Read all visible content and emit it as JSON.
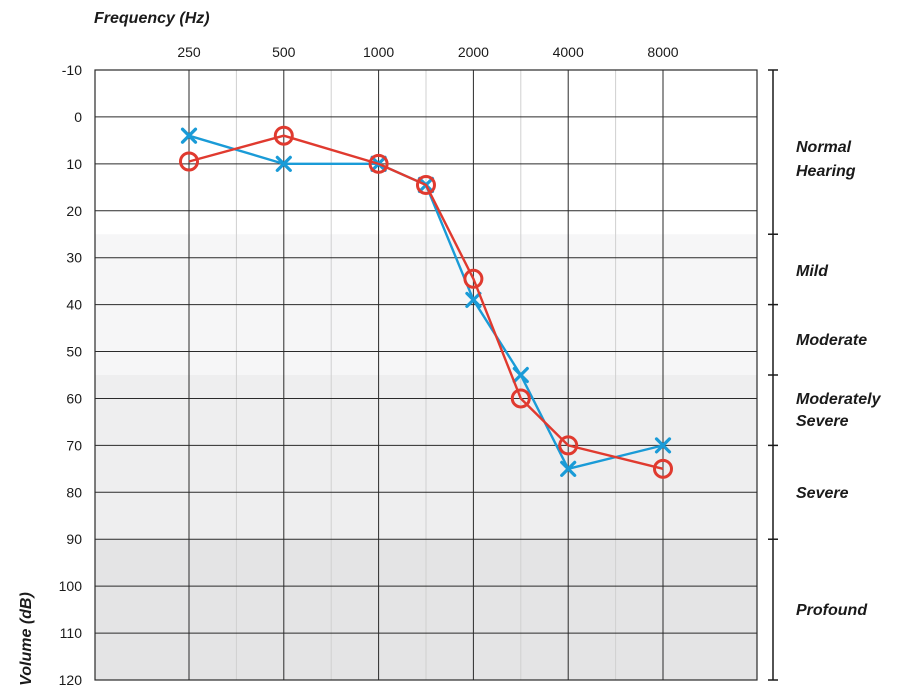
{
  "chart_data": {
    "type": "line",
    "xlabel": "Frequency (Hz)",
    "ylabel": "Volume (dB)",
    "x_ticks": [
      "250",
      "500",
      "1000",
      "2000",
      "4000",
      "8000"
    ],
    "y_ticks": [
      -10,
      0,
      10,
      20,
      30,
      40,
      50,
      60,
      70,
      80,
      90,
      100,
      110,
      120
    ],
    "y_tick_labels": [
      "-10",
      "0",
      "10",
      "20",
      "30",
      "40",
      "50",
      "60",
      "70",
      "80",
      "90",
      "100",
      "110",
      "120"
    ],
    "ylim": [
      -10,
      120
    ],
    "y_inverted": true,
    "x_scale": "log2",
    "grid": true,
    "series": [
      {
        "marker": "x",
        "color": "#1a9bd7",
        "points": [
          {
            "x": 250,
            "y": 4
          },
          {
            "x": 500,
            "y": 10
          },
          {
            "x": 1000,
            "y": 10
          },
          {
            "x": 1414,
            "y": 14.5
          },
          {
            "x": 2000,
            "y": 39
          },
          {
            "x": 2828,
            "y": 55
          },
          {
            "x": 4000,
            "y": 75
          },
          {
            "x": 8000,
            "y": 70
          }
        ]
      },
      {
        "marker": "o",
        "color": "#e03a2f",
        "points": [
          {
            "x": 250,
            "y": 9.5
          },
          {
            "x": 500,
            "y": 4
          },
          {
            "x": 1000,
            "y": 10
          },
          {
            "x": 1414,
            "y": 14.5
          },
          {
            "x": 2000,
            "y": 34.5
          },
          {
            "x": 2828,
            "y": 60
          },
          {
            "x": 4000,
            "y": 70
          },
          {
            "x": 8000,
            "y": 75
          }
        ]
      }
    ],
    "categories": [
      {
        "label_lines": [
          "Normal",
          "Hearing"
        ],
        "from": -10,
        "to": 25
      },
      {
        "label_lines": [
          "Mild"
        ],
        "from": 25,
        "to": 40
      },
      {
        "label_lines": [
          "Moderate"
        ],
        "from": 40,
        "to": 55
      },
      {
        "label_lines": [
          "Moderately",
          "Severe"
        ],
        "from": 55,
        "to": 70
      },
      {
        "label_lines": [
          "Severe"
        ],
        "from": 70,
        "to": 90
      },
      {
        "label_lines": [
          "Profound"
        ],
        "from": 90,
        "to": 120
      }
    ]
  }
}
